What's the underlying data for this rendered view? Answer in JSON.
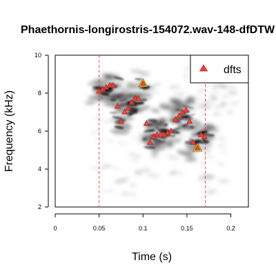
{
  "chart_data": {
    "type": "scatter",
    "title": "Phaethornis-longirostris-154072.wav-148-dfDTW",
    "xlabel": "Time (s)",
    "ylabel": "Frequency (kHz)",
    "xlim": [
      0,
      0.22
    ],
    "ylim": [
      2,
      10
    ],
    "x_ticks": [
      "0",
      "0.05",
      "0.1",
      "0.15",
      "0.2"
    ],
    "y_ticks": [
      "2",
      "4",
      "6",
      "8",
      "10"
    ],
    "background": "spectrogram",
    "grid": false,
    "legend": {
      "position": "top-right",
      "entries": [
        "dfts"
      ]
    },
    "selection_lines_x": [
      0.05,
      0.171
    ],
    "series": [
      {
        "name": "dfts",
        "marker": "triangle",
        "color": "#e8403a",
        "points": [
          [
            0.05,
            8.1
          ],
          [
            0.054,
            8.2
          ],
          [
            0.058,
            8.3
          ],
          [
            0.062,
            8.4
          ],
          [
            0.066,
            8.4
          ],
          [
            0.071,
            7.3
          ],
          [
            0.075,
            6.5
          ],
          [
            0.079,
            7.0
          ],
          [
            0.083,
            7.2
          ],
          [
            0.087,
            7.5
          ],
          [
            0.091,
            7.7
          ],
          [
            0.095,
            7.7
          ],
          [
            0.1,
            8.5
          ],
          [
            0.104,
            6.4
          ],
          [
            0.108,
            5.4
          ],
          [
            0.112,
            5.7
          ],
          [
            0.116,
            5.8
          ],
          [
            0.12,
            5.8
          ],
          [
            0.124,
            5.8
          ],
          [
            0.128,
            5.9
          ],
          [
            0.132,
            6.0
          ],
          [
            0.137,
            6.6
          ],
          [
            0.141,
            6.8
          ],
          [
            0.145,
            7.0
          ],
          [
            0.149,
            7.1
          ],
          [
            0.153,
            6.5
          ],
          [
            0.157,
            5.4
          ],
          [
            0.162,
            5.1
          ],
          [
            0.166,
            5.8
          ],
          [
            0.17,
            5.7
          ]
        ],
        "highlighted": [
          [
            0.1,
            8.5
          ],
          [
            0.162,
            5.1
          ]
        ],
        "highlight_color": "#e8c020"
      }
    ]
  }
}
